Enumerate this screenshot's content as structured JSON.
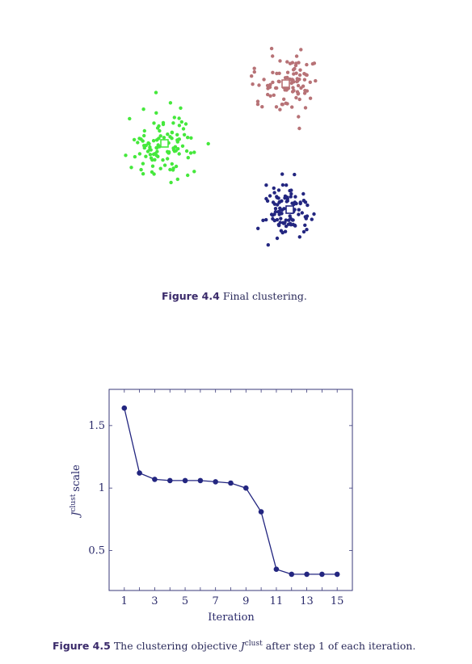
{
  "figure_4_4": {
    "label": "Figure 4.4",
    "text": "Final clustering.",
    "colors": {
      "green": "#45e83c",
      "pink": "#b77276",
      "navy": "#232680"
    }
  },
  "figure_4_5": {
    "label": "Figure 4.5",
    "text_before": "The clustering objective",
    "text_after": "after step 1 of each iteration.",
    "symbol": "J",
    "symbol_sup": "clust"
  },
  "chart_data": {
    "type": "line",
    "x": [
      1,
      2,
      3,
      4,
      5,
      6,
      7,
      8,
      9,
      10,
      11,
      12,
      13,
      14,
      15
    ],
    "values": [
      1.64,
      1.12,
      1.07,
      1.06,
      1.06,
      1.06,
      1.05,
      1.04,
      1.0,
      0.81,
      0.35,
      0.31,
      0.31,
      0.31,
      0.31
    ],
    "xlabel": "Iteration",
    "ylabel_symbol": "J",
    "ylabel_sup": "clust",
    "ylabel_suffix": "scale",
    "xlim": [
      0,
      16
    ],
    "ylim": [
      0.18,
      1.79
    ],
    "xticks": [
      "1",
      "3",
      "5",
      "7",
      "9",
      "11",
      "13",
      "15"
    ],
    "yticks": [
      "0.5",
      "1",
      "1.5"
    ],
    "line_color": "#232680",
    "grid": false
  }
}
